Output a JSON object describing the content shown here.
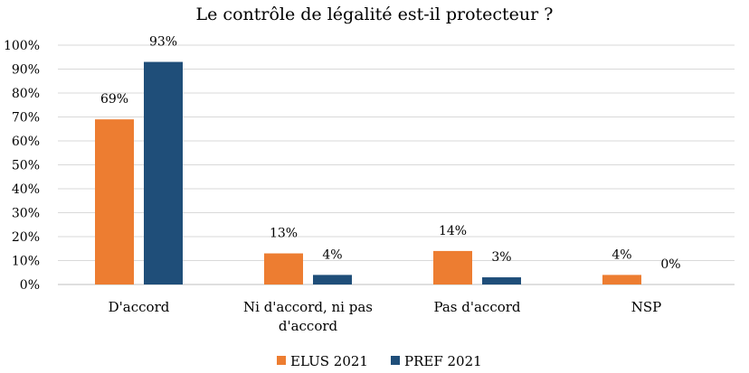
{
  "chart_data": {
    "type": "bar",
    "title": "Le contrôle de légalité est-il protecteur ?",
    "categories": [
      "D'accord",
      "Ni d'accord, ni pas d'accord",
      "Pas d'accord",
      "NSP"
    ],
    "category_lines": [
      [
        "D'accord"
      ],
      [
        "Ni d'accord, ni pas",
        "d'accord"
      ],
      [
        "Pas d'accord"
      ],
      [
        "NSP"
      ]
    ],
    "series": [
      {
        "name": "ELUS 2021",
        "values": [
          69,
          13,
          14,
          4
        ],
        "labels": [
          "69%",
          "13%",
          "14%",
          "4%"
        ],
        "color": "#ED7D31"
      },
      {
        "name": "PREF 2021",
        "values": [
          93,
          4,
          3,
          0
        ],
        "labels": [
          "93%",
          "4%",
          "3%",
          "0%"
        ],
        "color": "#1F4E79"
      }
    ],
    "ylim": [
      0,
      100
    ],
    "yticks": [
      "0%",
      "10%",
      "20%",
      "30%",
      "40%",
      "50%",
      "60%",
      "70%",
      "80%",
      "90%",
      "100%"
    ],
    "grid": true,
    "legend_position": "bottom"
  }
}
